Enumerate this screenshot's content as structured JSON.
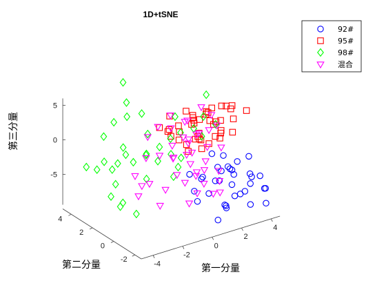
{
  "chart_data": {
    "type": "scatter",
    "projection": "3d",
    "title": "1D+tSNE",
    "xlabel": "第一分量",
    "ylabel": "第二分量",
    "zlabel": "第三分量",
    "xlim": [
      -5,
      4.5
    ],
    "ylim": [
      -3,
      5
    ],
    "zlim": [
      -9,
      6
    ],
    "xticks": [
      -4,
      -2,
      0,
      2,
      4
    ],
    "yticks": [
      -2,
      0,
      2,
      4
    ],
    "zticks": [
      -5,
      0,
      5
    ],
    "grid": false,
    "legend_position": "top-right",
    "series": [
      {
        "name": "92#",
        "marker": "circle",
        "color": "#0000ff",
        "points": [
          [
            1.2,
            -1.8,
            -2.0
          ],
          [
            2.0,
            -1.5,
            -2.5
          ],
          [
            2.5,
            -1.0,
            -3.5
          ],
          [
            3.0,
            -0.8,
            -2.8
          ],
          [
            1.5,
            -1.2,
            -4.2
          ],
          [
            0.8,
            -0.6,
            -3.8
          ],
          [
            3.4,
            -1.6,
            -4.5
          ],
          [
            2.2,
            -2.2,
            -5.6
          ],
          [
            4.0,
            -0.5,
            -3.0
          ],
          [
            1.0,
            -2.4,
            -6.2
          ],
          [
            2.8,
            -0.2,
            -4.0
          ],
          [
            3.6,
            -1.2,
            -6.0
          ],
          [
            0.5,
            -1.6,
            -5.0
          ],
          [
            4.2,
            -1.8,
            -6.5
          ],
          [
            1.8,
            -0.4,
            -5.2
          ],
          [
            2.6,
            -2.6,
            -7.0
          ],
          [
            3.2,
            -0.2,
            -5.4
          ],
          [
            1.4,
            -2.0,
            -7.3
          ],
          [
            0.3,
            -0.8,
            -6.8
          ],
          [
            3.8,
            -2.4,
            -7.8
          ],
          [
            2.0,
            0.2,
            -2.0
          ],
          [
            0.4,
            -2.6,
            -7.8
          ],
          [
            1.6,
            -0.9,
            -2.6
          ],
          [
            2.4,
            -1.4,
            -6.8
          ],
          [
            3.0,
            -2.0,
            -3.4
          ],
          [
            1.0,
            -0.2,
            -4.6
          ],
          [
            0.8,
            -2.8,
            -5.8
          ],
          [
            2.2,
            -0.6,
            -1.6
          ],
          [
            3.4,
            -2.8,
            -5.0
          ],
          [
            -0.2,
            -1.2,
            -4.6
          ],
          [
            0.2,
            -0.2,
            -3.4
          ],
          [
            4.4,
            -1.0,
            -5.6
          ],
          [
            1.2,
            -2.8,
            -3.0
          ],
          [
            2.8,
            -1.8,
            -6.0
          ]
        ]
      },
      {
        "name": "95#",
        "marker": "square",
        "color": "#ff0000",
        "points": [
          [
            1.0,
            0.6,
            3.5
          ],
          [
            1.6,
            0.2,
            4.0
          ],
          [
            2.2,
            1.0,
            3.2
          ],
          [
            2.8,
            0.4,
            4.2
          ],
          [
            3.4,
            0.8,
            3.4
          ],
          [
            4.2,
            0.0,
            3.0
          ],
          [
            3.8,
            0.8,
            3.2
          ],
          [
            0.6,
            1.4,
            1.8
          ],
          [
            1.2,
            1.0,
            2.0
          ],
          [
            1.8,
            1.6,
            1.2
          ],
          [
            2.4,
            0.6,
            1.6
          ],
          [
            3.0,
            1.2,
            1.0
          ],
          [
            3.6,
            0.4,
            1.8
          ],
          [
            0.2,
            0.8,
            0.6
          ],
          [
            0.8,
            1.6,
            0.6
          ],
          [
            1.4,
            0.4,
            0.2
          ],
          [
            2.0,
            1.4,
            -0.2
          ],
          [
            2.6,
            0.2,
            0.6
          ],
          [
            3.2,
            1.0,
            -0.2
          ],
          [
            0.4,
            0.2,
            -0.6
          ],
          [
            1.0,
            1.2,
            -1.0
          ],
          [
            1.6,
            0.6,
            -1.4
          ],
          [
            2.2,
            1.8,
            -1.2
          ],
          [
            2.8,
            1.0,
            -0.8
          ],
          [
            3.4,
            0.2,
            0.2
          ],
          [
            1.2,
            0.8,
            2.8
          ],
          [
            2.0,
            0.4,
            2.6
          ],
          [
            2.6,
            1.4,
            2.4
          ],
          [
            -0.4,
            1.8,
            1.8
          ],
          [
            -0.2,
            1.0,
            1.2
          ],
          [
            0.4,
            2.0,
            0.8
          ],
          [
            1.8,
            0.2,
            -0.4
          ],
          [
            4.0,
            1.2,
            2.2
          ],
          [
            3.0,
            1.6,
            2.6
          ],
          [
            1.4,
            1.8,
            3.0
          ],
          [
            2.4,
            0.0,
            0.2
          ],
          [
            0.0,
            1.4,
            3.6
          ],
          [
            1.0,
            0.0,
            1.0
          ],
          [
            2.0,
            2.0,
            1.8
          ],
          [
            3.6,
            1.6,
            0.4
          ],
          [
            0.6,
            2.4,
            0.0
          ],
          [
            1.6,
            1.2,
            -0.6
          ],
          [
            2.6,
            2.2,
            0.6
          ]
        ]
      },
      {
        "name": "98#",
        "marker": "diamond",
        "color": "#00ff00",
        "points": [
          [
            -1.0,
            4.4,
            6.2
          ],
          [
            -1.2,
            3.8,
            4.0
          ],
          [
            -1.6,
            3.2,
            2.8
          ],
          [
            -0.6,
            3.2,
            2.6
          ],
          [
            -2.2,
            3.6,
            2.0
          ],
          [
            -2.6,
            4.0,
            -0.2
          ],
          [
            -2.0,
            3.0,
            -1.2
          ],
          [
            -3.0,
            3.4,
            -3.0
          ],
          [
            -3.2,
            3.8,
            -4.4
          ],
          [
            -2.6,
            3.2,
            -4.2
          ],
          [
            -2.8,
            2.6,
            -5.6
          ],
          [
            -3.4,
            2.2,
            -6.6
          ],
          [
            -3.2,
            1.6,
            -7.6
          ],
          [
            -2.4,
            1.2,
            -8.8
          ],
          [
            -1.6,
            2.6,
            -3.2
          ],
          [
            -1.0,
            2.2,
            -2.0
          ],
          [
            -0.4,
            1.8,
            -1.0
          ],
          [
            0.2,
            1.6,
            0.0
          ],
          [
            0.6,
            1.2,
            1.0
          ],
          [
            1.2,
            0.8,
            1.6
          ],
          [
            1.6,
            0.6,
            0.4
          ],
          [
            2.0,
            1.0,
            2.6
          ],
          [
            2.4,
            0.4,
            1.8
          ],
          [
            -0.8,
            1.4,
            -2.4
          ],
          [
            -0.2,
            1.0,
            -1.4
          ],
          [
            0.2,
            0.6,
            -1.8
          ],
          [
            -1.6,
            1.4,
            -1.0
          ],
          [
            -2.0,
            0.8,
            -3.6
          ],
          [
            -0.6,
            0.2,
            -3.6
          ],
          [
            -3.6,
            0.8,
            -6.0
          ],
          [
            -2.8,
            2.4,
            -2.4
          ],
          [
            -2.4,
            2.2,
            -1.2
          ],
          [
            -1.2,
            1.8,
            1.4
          ],
          [
            3.2,
            2.4,
            3.6
          ],
          [
            0.8,
            2.0,
            2.4
          ],
          [
            0.0,
            0.6,
            -3.0
          ],
          [
            -3.2,
            4.8,
            -5.0
          ]
        ]
      },
      {
        "name": "混合",
        "marker": "triangle-down",
        "color": "#ff00ff",
        "points": [
          [
            -0.2,
            1.0,
            2.4
          ],
          [
            0.6,
            0.8,
            3.0
          ],
          [
            1.2,
            1.4,
            2.2
          ],
          [
            0.2,
            0.4,
            1.4
          ],
          [
            0.8,
            0.0,
            1.8
          ],
          [
            1.4,
            0.6,
            1.0
          ],
          [
            -0.4,
            0.6,
            0.4
          ],
          [
            0.4,
            0.2,
            0.6
          ],
          [
            1.0,
            1.0,
            0.0
          ],
          [
            -0.6,
            0.2,
            -0.8
          ],
          [
            0.0,
            -0.2,
            -0.4
          ],
          [
            0.8,
            0.4,
            -1.2
          ],
          [
            1.4,
            -0.2,
            -0.2
          ],
          [
            -0.2,
            0.8,
            -1.8
          ],
          [
            0.4,
            0.0,
            -2.2
          ],
          [
            1.0,
            -0.6,
            -1.6
          ],
          [
            -0.8,
            -0.4,
            -2.6
          ],
          [
            0.2,
            -0.8,
            -3.0
          ],
          [
            1.2,
            -0.2,
            -3.4
          ],
          [
            0.6,
            -1.0,
            -4.2
          ],
          [
            -0.4,
            -0.6,
            -3.8
          ],
          [
            1.8,
            -0.8,
            -4.8
          ],
          [
            0.0,
            -1.2,
            -5.0
          ],
          [
            1.4,
            -1.4,
            -5.6
          ],
          [
            -1.6,
            1.4,
            -1.4
          ],
          [
            -2.2,
            1.6,
            -3.8
          ],
          [
            -1.8,
            0.8,
            -4.4
          ],
          [
            -2.4,
            1.0,
            -6.0
          ],
          [
            -1.8,
            -0.2,
            -6.6
          ],
          [
            -1.0,
            0.4,
            -5.4
          ],
          [
            2.4,
            0.8,
            2.8
          ],
          [
            1.8,
            0.2,
            1.6
          ],
          [
            2.2,
            -0.4,
            -0.6
          ],
          [
            0.2,
            1.6,
            3.4
          ],
          [
            -1.2,
            1.8,
            1.0
          ],
          [
            -1.4,
            0.4,
            -0.2
          ],
          [
            -0.8,
            1.4,
            2.6
          ],
          [
            2.0,
            1.2,
            3.8
          ],
          [
            0.4,
            -0.6,
            -2.8
          ],
          [
            1.6,
            -1.0,
            -3.0
          ],
          [
            -0.4,
            -1.0,
            -6.4
          ],
          [
            0.8,
            -1.6,
            -5.2
          ],
          [
            -2.6,
            0.4,
            -3.8
          ],
          [
            2.2,
            0.0,
            2.2
          ]
        ]
      }
    ]
  }
}
